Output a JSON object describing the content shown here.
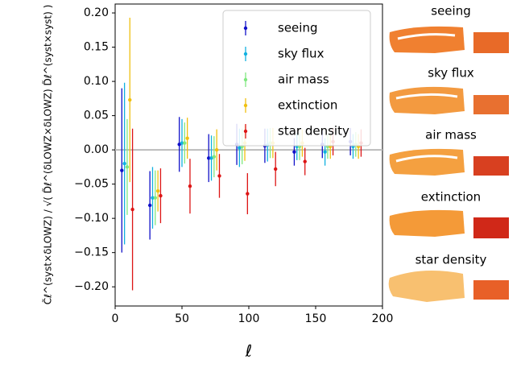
{
  "chart_data": {
    "type": "errorbar",
    "xlabel": "ℓ",
    "ylabel": "C̃ℓ^(syst×δLOWZ) / √( D̃ℓ^(δLOWZ×δLOWZ) D̃ℓ^(syst×syst) )",
    "xlim": [
      0,
      200
    ],
    "xticks": [
      0,
      50,
      100,
      150,
      200
    ],
    "ylim": [
      -0.228,
      0.213
    ],
    "yticks": [
      {
        "value": -0.2,
        "label": "−0.20"
      },
      {
        "value": -0.15,
        "label": "−0.15"
      },
      {
        "value": -0.1,
        "label": "−0.10"
      },
      {
        "value": -0.05,
        "label": "−0.05"
      },
      {
        "value": 0,
        "label": "0.00"
      },
      {
        "value": 0.05,
        "label": "0.05"
      },
      {
        "value": 0.1,
        "label": "0.10"
      },
      {
        "value": 0.15,
        "label": "0.15"
      },
      {
        "value": 0.2,
        "label": "0.20"
      }
    ],
    "reference_line": 0,
    "legend": "upper right",
    "series": [
      {
        "name": "seeing",
        "color": "#1010c8",
        "x": [
          5,
          26,
          48,
          70,
          91,
          112,
          134,
          155,
          176
        ],
        "values": [
          -0.03,
          -0.081,
          0.008,
          -0.012,
          0.008,
          0.006,
          -0.003,
          0.008,
          0.012
        ],
        "errors": [
          0.12,
          0.05,
          0.04,
          0.035,
          0.03,
          0.025,
          0.02,
          0.02,
          0.02
        ]
      },
      {
        "name": "sky flux",
        "color": "#10b0e0",
        "x": [
          7,
          28,
          50,
          72,
          93,
          114,
          136,
          157,
          178
        ],
        "values": [
          -0.02,
          -0.07,
          0.01,
          -0.012,
          0.003,
          0.007,
          0.005,
          -0.003,
          0.005
        ],
        "errors": [
          0.118,
          0.045,
          0.035,
          0.033,
          0.028,
          0.024,
          0.02,
          0.02,
          0.018
        ]
      },
      {
        "name": "air mass",
        "color": "#80e880",
        "x": [
          9,
          30,
          52,
          74,
          95,
          116,
          138,
          159,
          180
        ],
        "values": [
          -0.025,
          -0.07,
          0.01,
          -0.01,
          0.005,
          0.01,
          0.005,
          0.005,
          0.008
        ],
        "errors": [
          0.07,
          0.04,
          0.03,
          0.03,
          0.026,
          0.022,
          0.02,
          0.018,
          0.018
        ]
      },
      {
        "name": "extinction",
        "color": "#f0c010",
        "x": [
          11,
          32,
          54,
          76,
          97,
          118,
          140,
          161,
          182
        ],
        "values": [
          0.073,
          -0.06,
          0.017,
          0.0,
          0.01,
          0.01,
          0.01,
          0.005,
          0.005
        ],
        "errors": [
          0.12,
          0.03,
          0.03,
          0.03,
          0.026,
          0.022,
          0.02,
          0.018,
          0.018
        ]
      },
      {
        "name": "star density",
        "color": "#dd1515",
        "x": [
          13,
          34,
          56,
          78,
          99,
          120,
          142,
          163,
          184
        ],
        "values": [
          -0.087,
          -0.067,
          -0.053,
          -0.038,
          -0.064,
          -0.028,
          -0.017,
          0.012,
          0.01
        ],
        "errors": [
          0.118,
          0.04,
          0.04,
          0.032,
          0.03,
          0.025,
          0.02,
          0.02,
          0.02
        ]
      }
    ]
  },
  "map_panels": {
    "titles": [
      "seeing",
      "sky flux",
      "air mass",
      "extinction",
      "star density"
    ]
  }
}
